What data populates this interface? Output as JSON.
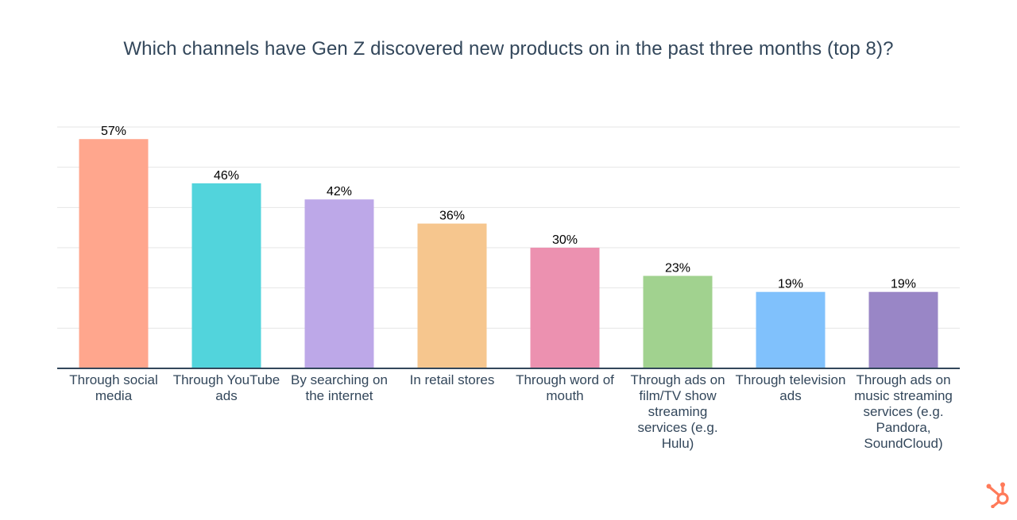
{
  "chart_data": {
    "type": "bar",
    "title": "Which channels have Gen Z discovered new products on in the past three months (top 8)?",
    "categories": [
      "Through social media",
      "Through YouTube ads",
      "By searching on the internet",
      "In retail stores",
      "Through word of mouth",
      "Through ads on film/TV show streaming services (e.g. Hulu)",
      "Through television ads",
      "Through ads on music streaming services (e.g. Pandora, SoundCloud)"
    ],
    "values": [
      57,
      46,
      42,
      36,
      30,
      23,
      19,
      19
    ],
    "value_labels": [
      "57%",
      "46%",
      "42%",
      "36%",
      "30%",
      "23%",
      "19%",
      "19%"
    ],
    "colors": [
      "#ffa68d",
      "#52d4dc",
      "#bda8e8",
      "#f6c68e",
      "#ec91b0",
      "#a1d28f",
      "#80c1fc",
      "#9986c6"
    ],
    "ylim": [
      0,
      60
    ],
    "grid": true,
    "legend": "none"
  },
  "branding": {
    "logo_icon": "hubspot-sprocket-icon",
    "logo_color": "#ff7a59"
  }
}
